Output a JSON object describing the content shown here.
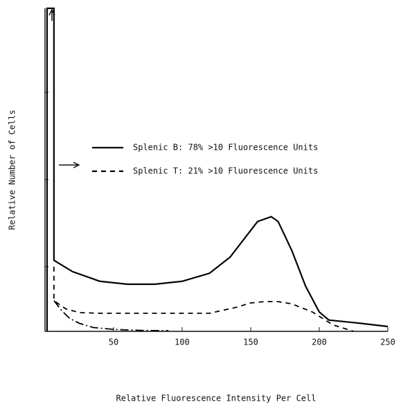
{
  "chart_data": {
    "type": "line",
    "x_label": "Relative Fluorescence Intensity Per Cell",
    "y_label": "Relative Number of Cells",
    "xlim": [
      0,
      250
    ],
    "xticks": [
      50,
      100,
      150,
      200,
      250
    ],
    "ylim": [
      0,
      100
    ],
    "yticks": [
      20,
      47,
      74
    ],
    "series": [
      {
        "name": "Splenic B:  78% >10 Fluorescence Units",
        "color": "#000000",
        "style": "solid",
        "x": [
          1.5,
          1.5,
          6.5,
          6.5,
          20,
          40,
          60,
          80,
          100,
          120,
          135,
          145,
          155,
          165,
          170,
          180,
          190,
          200,
          207,
          230,
          250
        ],
        "values": [
          0,
          100,
          100,
          22,
          18.5,
          15.5,
          14.6,
          14.6,
          15.5,
          18,
          23,
          28.5,
          34,
          35.5,
          34,
          25,
          14,
          6,
          3.5,
          2.5,
          1.5
        ]
      },
      {
        "name": "Splenic T:  21% >10 Fluorescence Units",
        "color": "#000000",
        "style": "dashed",
        "x": [
          6.5,
          6.5,
          15,
          25,
          40,
          60,
          90,
          120,
          140,
          150,
          160,
          170,
          180,
          195,
          210,
          225
        ],
        "values": [
          20,
          9.5,
          7,
          5.8,
          5.6,
          5.6,
          5.6,
          5.6,
          7.5,
          8.8,
          9.2,
          9.2,
          8.5,
          6,
          2,
          0
        ]
      },
      {
        "color": "#000000",
        "style": "dashdot",
        "x": [
          6.5,
          12,
          18,
          25,
          35,
          50,
          70,
          90
        ],
        "values": [
          9.5,
          6.5,
          4,
          2.5,
          1.2,
          0.6,
          0.3,
          0.2
        ]
      }
    ]
  }
}
